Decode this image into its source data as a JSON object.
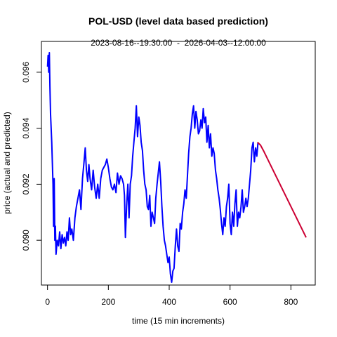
{
  "chart_data": {
    "type": "line",
    "title": "POL-USD (level data based prediction)",
    "subtitle": "2023-08-16--19:30:00  -  2026-04-03--12:00:00",
    "xlabel": "time (15 min increments)",
    "ylabel": "price (actual and predicted)",
    "xlim": [
      -20,
      880
    ],
    "ylim": [
      0.0884,
      0.0971
    ],
    "x_ticks": [
      0,
      200,
      400,
      600,
      800
    ],
    "y_ticks": [
      0.09,
      0.092,
      0.094,
      0.096
    ],
    "y_tick_labels": [
      "0.090",
      "0.092",
      "0.094",
      "0.096"
    ],
    "grid": false,
    "series": [
      {
        "color": "#0000ff",
        "x": [
          0,
          2,
          4,
          6,
          8,
          10,
          14,
          18,
          20,
          22,
          24,
          26,
          28,
          32,
          36,
          40,
          44,
          48,
          52,
          56,
          60,
          64,
          68,
          72,
          76,
          80,
          85,
          90,
          95,
          100,
          105,
          110,
          115,
          120,
          124,
          128,
          132,
          136,
          140,
          145,
          150,
          155,
          160,
          165,
          170,
          175,
          180,
          185,
          190,
          195,
          200,
          205,
          210,
          215,
          220,
          225,
          230,
          235,
          240,
          245,
          250,
          253,
          256,
          260,
          264,
          268,
          272,
          276,
          280,
          284,
          288,
          292,
          296,
          300,
          304,
          308,
          312,
          316,
          320,
          324,
          328,
          332,
          336,
          340,
          344,
          348,
          352,
          356,
          360,
          364,
          368,
          372,
          376,
          380,
          384,
          388,
          392,
          396,
          400,
          404,
          408,
          412,
          416,
          420,
          424,
          428,
          432,
          436,
          440,
          444,
          448,
          452,
          456,
          460,
          464,
          468,
          472,
          476,
          480,
          484,
          488,
          492,
          496,
          500,
          504,
          508,
          512,
          516,
          520,
          524,
          528,
          532,
          536,
          540,
          544,
          548,
          552,
          556,
          560,
          564,
          568,
          572,
          576,
          580,
          584,
          588,
          592,
          596,
          600,
          604,
          608,
          612,
          616,
          620,
          624,
          628,
          632,
          636,
          640,
          644,
          648,
          652,
          656,
          660,
          664,
          668,
          672,
          676,
          680,
          684,
          688,
          692
        ],
        "y": [
          0.0962,
          0.0966,
          0.096,
          0.0967,
          0.0955,
          0.0945,
          0.0935,
          0.092,
          0.0905,
          0.0922,
          0.09,
          0.0905,
          0.0895,
          0.09,
          0.0898,
          0.0903,
          0.0897,
          0.0902,
          0.0899,
          0.0901,
          0.0898,
          0.0903,
          0.09,
          0.0908,
          0.0902,
          0.0904,
          0.09,
          0.0908,
          0.0912,
          0.0915,
          0.0918,
          0.0911,
          0.0922,
          0.0928,
          0.0933,
          0.0925,
          0.0921,
          0.0927,
          0.0922,
          0.0918,
          0.0925,
          0.0919,
          0.0915,
          0.092,
          0.0915,
          0.0922,
          0.0925,
          0.0926,
          0.0927,
          0.0929,
          0.0926,
          0.0922,
          0.0919,
          0.0918,
          0.092,
          0.0917,
          0.0924,
          0.092,
          0.0923,
          0.0922,
          0.092,
          0.0916,
          0.0901,
          0.0912,
          0.092,
          0.0908,
          0.092,
          0.0923,
          0.093,
          0.0935,
          0.094,
          0.0948,
          0.0937,
          0.0944,
          0.0941,
          0.0935,
          0.0932,
          0.0925,
          0.092,
          0.0918,
          0.0912,
          0.0911,
          0.0916,
          0.0905,
          0.091,
          0.0908,
          0.0906,
          0.0915,
          0.092,
          0.0924,
          0.0928,
          0.0921,
          0.0912,
          0.0905,
          0.09,
          0.0898,
          0.0895,
          0.0892,
          0.0894,
          0.0888,
          0.0885,
          0.0889,
          0.089,
          0.0898,
          0.0904,
          0.0898,
          0.0896,
          0.0906,
          0.0904,
          0.091,
          0.0913,
          0.0918,
          0.0915,
          0.0923,
          0.0931,
          0.0937,
          0.094,
          0.0945,
          0.0948,
          0.094,
          0.0946,
          0.0943,
          0.0938,
          0.0939,
          0.0943,
          0.094,
          0.0947,
          0.0942,
          0.0944,
          0.0935,
          0.0941,
          0.0933,
          0.0938,
          0.093,
          0.0933,
          0.0931,
          0.0925,
          0.0922,
          0.0918,
          0.0915,
          0.0911,
          0.0906,
          0.0902,
          0.0908,
          0.0905,
          0.0912,
          0.0915,
          0.092,
          0.0906,
          0.0902,
          0.091,
          0.0905,
          0.0913,
          0.0918,
          0.0905,
          0.091,
          0.0908,
          0.0912,
          0.0918,
          0.091,
          0.0912,
          0.0915,
          0.0912,
          0.0915,
          0.092,
          0.0925,
          0.0933,
          0.0935,
          0.0928,
          0.0933,
          0.093,
          0.0935
        ]
      },
      {
        "color": "#cc0033",
        "x": [
          690,
          700,
          710,
          850
        ],
        "y": [
          0.0935,
          0.0934,
          0.0932,
          0.0901
        ]
      }
    ]
  }
}
